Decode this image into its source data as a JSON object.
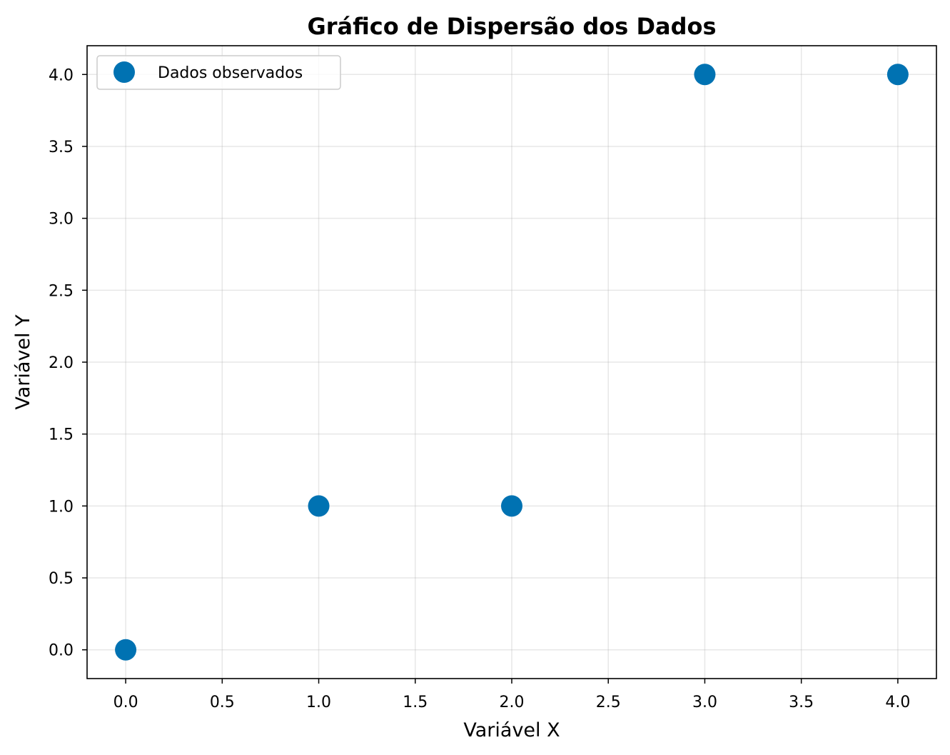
{
  "chart_data": {
    "type": "scatter",
    "title": "Gráfico de Dispersão dos Dados",
    "xlabel": "Variável X",
    "ylabel": "Variável Y",
    "xlim": [
      -0.2,
      4.2
    ],
    "ylim": [
      -0.2,
      4.2
    ],
    "xticks": [
      0.0,
      0.5,
      1.0,
      1.5,
      2.0,
      2.5,
      3.0,
      3.5,
      4.0
    ],
    "yticks": [
      0.0,
      0.5,
      1.0,
      1.5,
      2.0,
      2.5,
      3.0,
      3.5,
      4.0
    ],
    "xtick_labels": [
      "0.0",
      "0.5",
      "1.0",
      "1.5",
      "2.0",
      "2.5",
      "3.0",
      "3.5",
      "4.0"
    ],
    "ytick_labels": [
      "0.0",
      "0.5",
      "1.0",
      "1.5",
      "2.0",
      "2.5",
      "3.0",
      "3.5",
      "4.0"
    ],
    "grid": true,
    "legend_position": "top-left",
    "series": [
      {
        "name": "Dados observados",
        "color": "#0072b2",
        "marker": "circle",
        "x": [
          0,
          1,
          2,
          3,
          4
        ],
        "y": [
          0,
          1,
          1,
          4,
          4
        ]
      }
    ]
  }
}
